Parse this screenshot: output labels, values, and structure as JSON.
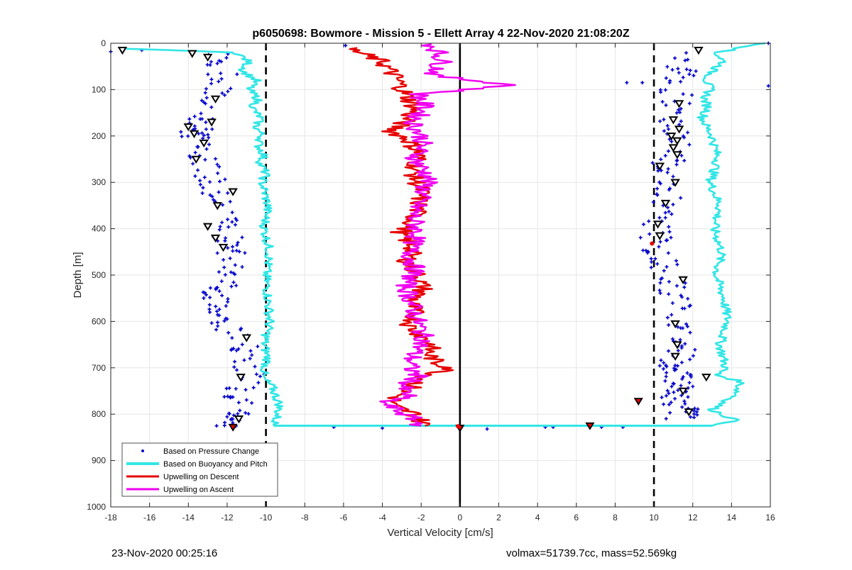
{
  "footer": {
    "timestamp": "23-Nov-2020 00:25:16",
    "ballast": "volmax=51739.7cc, mass=52.569kg"
  },
  "chart_data": {
    "type": "scatter",
    "title": "p6050698: Bowmore - Mission 5 - Ellett Array 4 22-Nov-2020 21:08:20Z",
    "xlabel": "Vertical Velocity [cm/s]",
    "ylabel": "Depth [m]",
    "xlim": [
      -18,
      16
    ],
    "ylim": [
      0,
      1000
    ],
    "y_reversed": true,
    "x_ticks": [
      -18,
      -16,
      -14,
      -12,
      -10,
      -8,
      -6,
      -4,
      -2,
      0,
      2,
      4,
      6,
      8,
      10,
      12,
      14,
      16
    ],
    "y_ticks": [
      0,
      100,
      200,
      300,
      400,
      500,
      600,
      700,
      800,
      900,
      1000
    ],
    "grid": true,
    "legend_position": "bottom-left",
    "colors": {
      "pressure": "#0000cc",
      "buoyancy": "#33e6e6",
      "descent": "#e60000",
      "ascent": "#f000f0",
      "reference": "#000000"
    },
    "reference_lines": [
      {
        "x": -10,
        "style": "dashed"
      },
      {
        "x": 0,
        "style": "solid"
      },
      {
        "x": 10,
        "style": "dashed"
      }
    ],
    "series": [
      {
        "name": "Based on Buoyancy and Pitch",
        "kind": "line",
        "branches": [
          {
            "x": [
              -17.2,
              -11.5,
              -10.9,
              -11.2,
              -10.5,
              -10.9,
              -10.4,
              -10.7,
              -10.3,
              -10.5,
              -10.2,
              -10.4,
              -10.1,
              -10.3,
              -10.0,
              -10.2,
              -9.9,
              -10.1,
              -9.8,
              -10.0,
              -9.9,
              -9.8,
              -10.1,
              -9.9,
              -10.2,
              -9.7,
              -9.5,
              -9.3,
              -9.4,
              -9.6
            ],
            "y": [
              12,
              20,
              40,
              60,
              80,
              100,
              120,
              140,
              160,
              180,
              200,
              220,
              240,
              260,
              280,
              300,
              350,
              400,
              450,
              500,
              550,
              600,
              650,
              680,
              720,
              740,
              760,
              780,
              800,
              825
            ]
          },
          {
            "x": [
              15.8,
              13.2,
              13.6,
              13.0,
              12.7,
              12.9,
              12.6,
              12.8,
              12.5,
              12.7,
              13.0,
              13.3,
              12.9,
              13.4,
              13.1,
              13.5,
              13.2,
              13.6,
              13.8,
              13.4,
              13.7,
              13.2,
              14.5,
              14.2,
              13.0,
              13.5,
              14.3,
              13.0
            ],
            "y": [
              0,
              20,
              40,
              60,
              80,
              100,
              120,
              140,
              160,
              180,
              200,
              250,
              300,
              350,
              400,
              450,
              500,
              550,
              600,
              650,
              700,
              715,
              730,
              760,
              790,
              800,
              815,
              825
            ]
          }
        ]
      },
      {
        "name": "Upwelling on Descent",
        "kind": "line",
        "x": [
          -5.8,
          -4.0,
          -3.2,
          -2.8,
          -2.3,
          -2.9,
          -3.5,
          -2.6,
          -2.1,
          -2.4,
          -2.0,
          -2.2,
          -2.5,
          -3.1,
          -2.4,
          -2.7,
          -2.2,
          -1.9,
          -2.5,
          -2.3,
          -2.6,
          -2.0,
          -1.5,
          -1.6,
          -1.2,
          -0.4,
          -1.8,
          -2.4,
          -3.2,
          -3.6,
          -2.3,
          -1.8
        ],
        "y": [
          10,
          40,
          80,
          110,
          140,
          170,
          190,
          210,
          240,
          280,
          320,
          360,
          390,
          410,
          440,
          470,
          500,
          530,
          560,
          590,
          610,
          630,
          650,
          670,
          690,
          700,
          720,
          740,
          760,
          780,
          800,
          825
        ]
      },
      {
        "name": "Upwelling on Ascent",
        "kind": "line",
        "x": [
          -1.5,
          -1.1,
          -0.9,
          -1.4,
          2.8,
          -2.1,
          -1.8,
          -2.4,
          -1.9,
          -2.3,
          -1.6,
          -2.0,
          -2.4,
          -2.2,
          -2.6,
          -2.3,
          -2.8,
          -2.5,
          -2.2,
          -1.8,
          -2.4,
          -2.6,
          -2.1,
          -3.0,
          -2.7,
          -4.0,
          -3.3,
          -2.4,
          -2.0
        ],
        "y": [
          0,
          20,
          40,
          70,
          90,
          110,
          140,
          170,
          210,
          250,
          290,
          330,
          370,
          410,
          450,
          490,
          520,
          560,
          600,
          640,
          670,
          700,
          720,
          740,
          760,
          775,
          790,
          810,
          825
        ]
      },
      {
        "name": "Based on Pressure Change",
        "kind": "points",
        "groups": [
          {
            "x_range": [
              -15.0,
              -11.5
            ],
            "y_range": [
              10,
              830
            ],
            "center_x": [
              -12.6,
              -12.2,
              -12.6,
              -13.2,
              -13.4,
              -13.8,
              -13.2,
              -12.9,
              -12.6,
              -12.4,
              -12.2,
              -11.8,
              -11.6,
              -11.8,
              -12.6,
              -12.8,
              -12.3,
              -11.4,
              -10.8,
              -10.9,
              -11.6,
              -11.3,
              -11.7,
              -11.9
            ],
            "center_y": [
              20,
              60,
              100,
              150,
              180,
              200,
              240,
              280,
              320,
              360,
              400,
              440,
              480,
              520,
              540,
              570,
              600,
              640,
              680,
              720,
              760,
              790,
              810,
              830
            ]
          },
          {
            "x_range": [
              9.6,
              12.6
            ],
            "y_range": [
              10,
              830
            ],
            "center_x": [
              11.2,
              11.4,
              11.1,
              11.3,
              11.0,
              11.2,
              10.7,
              10.9,
              10.6,
              10.2,
              10.1,
              10.3,
              10.9,
              11.0,
              11.2,
              11.4,
              11.6,
              11.0,
              11.1,
              11.2,
              11.5,
              10.8,
              11.7,
              11.4
            ],
            "center_y": [
              20,
              60,
              100,
              140,
              180,
              220,
              260,
              300,
              340,
              380,
              420,
              460,
              500,
              540,
              580,
              620,
              660,
              690,
              710,
              730,
              750,
              770,
              790,
              810
            ]
          }
        ],
        "outliers": [
          {
            "x": -18.0,
            "y": 18
          },
          {
            "x": -16.4,
            "y": 15
          },
          {
            "x": -5.9,
            "y": 5
          },
          {
            "x": 15.9,
            "y": 0
          },
          {
            "x": 15.9,
            "y": 92
          },
          {
            "x": 8.6,
            "y": 85
          },
          {
            "x": 9.4,
            "y": 85
          },
          {
            "x": -6.5,
            "y": 828
          },
          {
            "x": 4.4,
            "y": 828
          },
          {
            "x": 4.8,
            "y": 828
          },
          {
            "x": 7.3,
            "y": 828
          },
          {
            "x": 8.4,
            "y": 828
          },
          {
            "x": 1.4,
            "y": 832
          },
          {
            "x": -4.0,
            "y": 830
          }
        ]
      }
    ],
    "markers": {
      "triangles_open": [
        {
          "x": -17.4,
          "y": 15
        },
        {
          "x": -13.8,
          "y": 22
        },
        {
          "x": -13.0,
          "y": 30
        },
        {
          "x": -12.6,
          "y": 120
        },
        {
          "x": -12.8,
          "y": 170
        },
        {
          "x": -14.0,
          "y": 180
        },
        {
          "x": -13.7,
          "y": 195
        },
        {
          "x": -13.2,
          "y": 215
        },
        {
          "x": -13.6,
          "y": 250
        },
        {
          "x": -11.7,
          "y": 320
        },
        {
          "x": -12.5,
          "y": 350
        },
        {
          "x": -13.0,
          "y": 395
        },
        {
          "x": -12.6,
          "y": 420
        },
        {
          "x": -12.2,
          "y": 440
        },
        {
          "x": -11.0,
          "y": 635
        },
        {
          "x": -11.3,
          "y": 720
        },
        {
          "x": -11.4,
          "y": 810
        },
        {
          "x": 12.3,
          "y": 15
        },
        {
          "x": 11.3,
          "y": 130
        },
        {
          "x": 11.0,
          "y": 165
        },
        {
          "x": 11.3,
          "y": 185
        },
        {
          "x": 10.9,
          "y": 200
        },
        {
          "x": 11.2,
          "y": 210
        },
        {
          "x": 11.0,
          "y": 225
        },
        {
          "x": 11.2,
          "y": 240
        },
        {
          "x": 10.3,
          "y": 265
        },
        {
          "x": 11.1,
          "y": 300
        },
        {
          "x": 10.6,
          "y": 345
        },
        {
          "x": 10.2,
          "y": 390
        },
        {
          "x": 10.3,
          "y": 415
        },
        {
          "x": 11.5,
          "y": 510
        },
        {
          "x": 11.1,
          "y": 605
        },
        {
          "x": 11.2,
          "y": 650
        },
        {
          "x": 11.1,
          "y": 675
        },
        {
          "x": 12.7,
          "y": 720
        },
        {
          "x": 11.5,
          "y": 750
        },
        {
          "x": 11.8,
          "y": 795
        }
      ],
      "triangles_filled": [
        {
          "x": -11.7,
          "y": 828
        },
        {
          "x": 9.2,
          "y": 772
        },
        {
          "x": 6.7,
          "y": 825
        },
        {
          "x": 0.0,
          "y": 830
        }
      ],
      "red_dots": [
        {
          "x": 9.9,
          "y": 432
        },
        {
          "x": -0.1,
          "y": 826
        }
      ]
    },
    "legend": [
      "Based on Pressure Change",
      "Based on Buoyancy and Pitch",
      "Upwelling on Descent",
      "Upwelling on Ascent"
    ]
  }
}
